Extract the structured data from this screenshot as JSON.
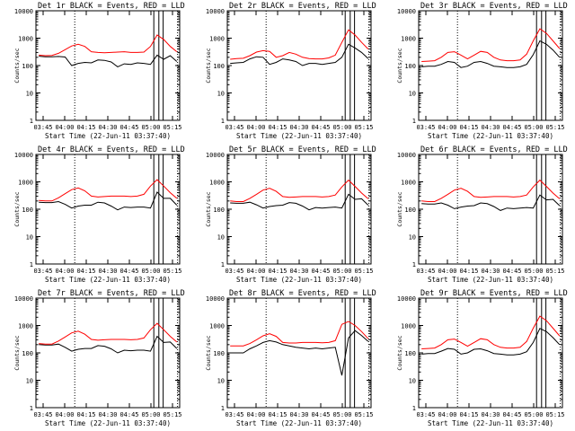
{
  "figure": {
    "xlabel": "Start Time (22-Jun-11 03:37:40)",
    "ylabel": "Counts/sec"
  },
  "chart_data": [
    {
      "type": "line",
      "title": "Det 1r BLACK = Events, RED = LLD",
      "series": [
        {
          "name": "Events",
          "color": "#000000",
          "values": [
            220,
            210,
            210,
            215,
            205,
            100,
            120,
            130,
            125,
            160,
            155,
            135,
            90,
            115,
            110,
            125,
            120,
            110,
            240,
            170,
            230,
            140
          ]
        },
        {
          "name": "LLD",
          "color": "#ff0000",
          "values": [
            240,
            230,
            235,
            280,
            380,
            520,
            600,
            500,
            320,
            300,
            295,
            300,
            310,
            320,
            300,
            300,
            310,
            500,
            1300,
            900,
            500,
            320
          ]
        }
      ]
    },
    {
      "type": "line",
      "title": "Det 2r BLACK = Events, RED = LLD",
      "series": [
        {
          "name": "Events",
          "color": "#000000",
          "values": [
            120,
            125,
            130,
            175,
            210,
            200,
            110,
            130,
            175,
            160,
            140,
            100,
            120,
            120,
            110,
            120,
            130,
            200,
            600,
            440,
            300,
            180
          ]
        },
        {
          "name": "LLD",
          "color": "#ff0000",
          "values": [
            170,
            180,
            185,
            230,
            310,
            350,
            330,
            200,
            230,
            300,
            260,
            200,
            180,
            175,
            175,
            190,
            240,
            700,
            2000,
            1300,
            700,
            400
          ]
        }
      ]
    },
    {
      "type": "line",
      "title": "Det 3r BLACK = Events, RED = LLD",
      "series": [
        {
          "name": "Events",
          "color": "#000000",
          "values": [
            90,
            95,
            95,
            110,
            140,
            130,
            85,
            95,
            130,
            140,
            120,
            95,
            90,
            85,
            85,
            90,
            110,
            250,
            800,
            600,
            370,
            200
          ]
        },
        {
          "name": "LLD",
          "color": "#ff0000",
          "values": [
            140,
            145,
            150,
            200,
            300,
            320,
            240,
            175,
            240,
            330,
            300,
            200,
            160,
            150,
            150,
            160,
            260,
            800,
            2200,
            1500,
            800,
            420
          ]
        }
      ]
    },
    {
      "type": "line",
      "title": "Det 4r BLACK = Events, RED = LLD",
      "series": [
        {
          "name": "Events",
          "color": "#000000",
          "values": [
            180,
            175,
            175,
            190,
            150,
            110,
            130,
            140,
            140,
            180,
            170,
            130,
            95,
            120,
            115,
            120,
            120,
            110,
            420,
            250,
            250,
            140
          ]
        },
        {
          "name": "LLD",
          "color": "#ff0000",
          "values": [
            210,
            200,
            200,
            260,
            370,
            520,
            600,
            470,
            300,
            280,
            290,
            300,
            300,
            300,
            290,
            300,
            350,
            700,
            1200,
            700,
            400,
            250
          ]
        }
      ]
    },
    {
      "type": "line",
      "title": "Det 5r BLACK = Events, RED = LLD",
      "series": [
        {
          "name": "Events",
          "color": "#000000",
          "values": [
            170,
            165,
            165,
            180,
            145,
            110,
            125,
            135,
            140,
            175,
            165,
            130,
            95,
            115,
            110,
            115,
            120,
            110,
            350,
            230,
            240,
            140
          ]
        },
        {
          "name": "LLD",
          "color": "#ff0000",
          "values": [
            200,
            190,
            190,
            250,
            350,
            500,
            580,
            450,
            290,
            270,
            280,
            290,
            290,
            290,
            280,
            290,
            330,
            650,
            1150,
            680,
            390,
            240
          ]
        }
      ]
    },
    {
      "type": "line",
      "title": "Det 6r BLACK = Events, RED = LLD",
      "series": [
        {
          "name": "Events",
          "color": "#000000",
          "values": [
            160,
            155,
            155,
            170,
            140,
            105,
            120,
            130,
            135,
            170,
            160,
            125,
            90,
            110,
            105,
            110,
            115,
            110,
            330,
            220,
            230,
            135
          ]
        },
        {
          "name": "LLD",
          "color": "#ff0000",
          "values": [
            200,
            190,
            190,
            250,
            350,
            500,
            580,
            450,
            290,
            270,
            280,
            290,
            290,
            290,
            280,
            290,
            330,
            650,
            1150,
            680,
            390,
            240
          ]
        }
      ]
    },
    {
      "type": "line",
      "title": "Det 7r BLACK = Events, RED = LLD",
      "series": [
        {
          "name": "Events",
          "color": "#000000",
          "values": [
            200,
            195,
            195,
            210,
            160,
            115,
            135,
            145,
            145,
            185,
            175,
            140,
            100,
            125,
            120,
            125,
            125,
            115,
            400,
            240,
            250,
            145
          ]
        },
        {
          "name": "LLD",
          "color": "#ff0000",
          "values": [
            220,
            210,
            210,
            270,
            380,
            540,
            620,
            480,
            310,
            290,
            300,
            310,
            310,
            310,
            300,
            310,
            350,
            700,
            1200,
            700,
            400,
            250
          ]
        }
      ]
    },
    {
      "type": "line",
      "title": "Det 8r BLACK = Events, RED = LLD",
      "series": [
        {
          "name": "Events",
          "color": "#000000",
          "values": [
            100,
            100,
            100,
            140,
            180,
            240,
            280,
            250,
            200,
            180,
            160,
            150,
            140,
            150,
            140,
            150,
            160,
            15,
            350,
            650,
            430,
            260
          ]
        },
        {
          "name": "LLD",
          "color": "#ff0000",
          "values": [
            180,
            180,
            180,
            220,
            300,
            420,
            500,
            400,
            240,
            230,
            230,
            240,
            240,
            240,
            235,
            240,
            280,
            1100,
            1400,
            1000,
            600,
            330
          ]
        }
      ]
    },
    {
      "type": "line",
      "title": "Det 9r BLACK = Events, RED = LLD",
      "series": [
        {
          "name": "Events",
          "color": "#000000",
          "values": [
            90,
            95,
            95,
            115,
            145,
            135,
            90,
            100,
            135,
            140,
            120,
            95,
            90,
            85,
            85,
            90,
            110,
            240,
            780,
            600,
            360,
            200
          ]
        },
        {
          "name": "LLD",
          "color": "#ff0000",
          "values": [
            140,
            145,
            150,
            200,
            300,
            320,
            240,
            175,
            240,
            330,
            300,
            200,
            160,
            150,
            150,
            160,
            260,
            800,
            2200,
            1500,
            800,
            420
          ]
        }
      ]
    }
  ],
  "x_ticks": [
    "03:45",
    "04:00",
    "04:15",
    "04:30",
    "04:45",
    "05:00",
    "05:15"
  ],
  "y_ticks": [
    "1",
    "10",
    "100",
    "1000",
    "10000"
  ]
}
